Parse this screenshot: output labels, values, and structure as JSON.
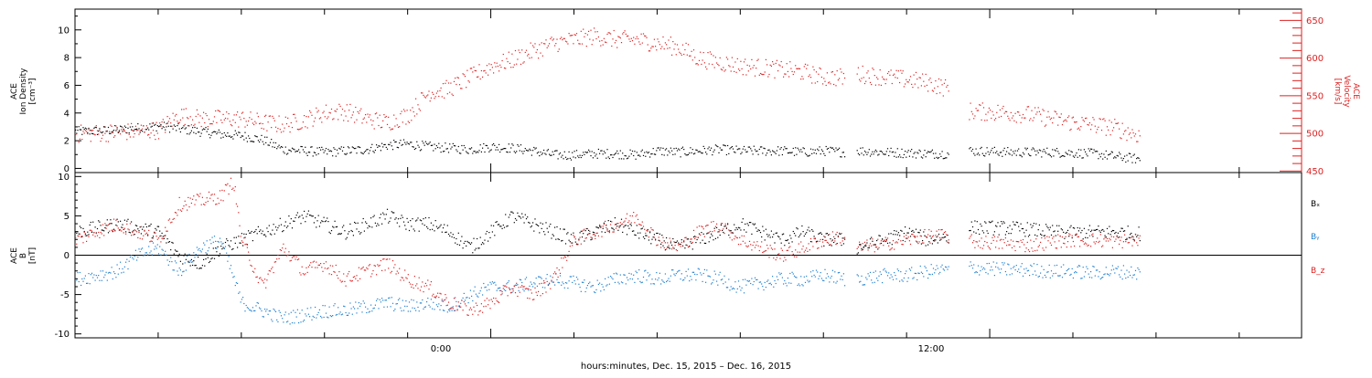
{
  "chart_data": [
    {
      "type": "scatter",
      "panel": "top",
      "x_unit": "hours relative to 2015-12-16 00:00",
      "xlim": [
        -10.0,
        19.5
      ],
      "left_axis": {
        "label_lines": [
          "ACE",
          "Ion Density",
          "[cm⁻³]"
        ],
        "ylim": [
          -0.3,
          11.5
        ],
        "ticks": [
          0,
          2,
          4,
          6,
          8,
          10
        ],
        "color": "#000000"
      },
      "right_axis": {
        "label_lines": [
          "ACE",
          "Velocity",
          "[km/s]"
        ],
        "ylim": [
          448,
          665
        ],
        "ticks": [
          450,
          500,
          550,
          600,
          650
        ],
        "color": "#dd2222"
      },
      "series": [
        {
          "axis": "left",
          "color": "#000000",
          "segments": [
            {
              "x": [
                -10,
                -9,
                -8,
                -7,
                -6.5,
                -6,
                -5.5,
                -5,
                -4.5,
                -4,
                -3.5,
                -3,
                -2.5,
                -2,
                -1.5,
                -1,
                -0.5,
                0,
                0.5,
                1,
                1.5,
                2,
                2.5,
                3,
                3.5,
                4,
                4.5,
                5,
                5.5,
                6,
                6.5,
                7,
                7.5,
                8,
                8.5
              ],
              "y": [
                2.7,
                2.8,
                3.1,
                2.7,
                2.5,
                2.4,
                2.1,
                1.4,
                1.3,
                1.2,
                1.3,
                1.4,
                1.7,
                1.8,
                1.6,
                1.5,
                1.4,
                1.6,
                1.5,
                1.3,
                1.0,
                1.0,
                1.1,
                1.1,
                1.0,
                1.3,
                1.2,
                1.3,
                1.4,
                1.3,
                1.3,
                1.3,
                1.2,
                1.3,
                1.2
              ]
            },
            {
              "x": [
                8.8,
                9.5,
                10.5,
                11.0
              ],
              "y": [
                1.3,
                1.2,
                1.1,
                1.1
              ]
            },
            {
              "x": [
                11.5,
                12.5,
                13.5,
                14.5,
                15.0,
                15.6
              ],
              "y": [
                1.3,
                1.2,
                1.2,
                1.1,
                0.9,
                0.7
              ]
            }
          ]
        },
        {
          "axis": "right",
          "color": "#dd2222",
          "segments": [
            {
              "x": [
                -10,
                -9,
                -8,
                -7.5,
                -7,
                -6,
                -5.5,
                -5,
                -4.5,
                -4,
                -3.5,
                -3,
                -2.5,
                -2,
                -1.5,
                -1,
                -0.5,
                0,
                0.5,
                1,
                1.5,
                2,
                2.5,
                3,
                3.5,
                4,
                4.5,
                5,
                5.5,
                6,
                6.5,
                7,
                7.5,
                8,
                8.5
              ],
              "y": [
                500,
                502,
                505,
                525,
                520,
                520,
                515,
                512,
                518,
                528,
                530,
                520,
                515,
                525,
                555,
                560,
                575,
                590,
                598,
                610,
                620,
                625,
                630,
                625,
                625,
                620,
                615,
                600,
                595,
                590,
                588,
                585,
                582,
                575,
                575
              ]
            },
            {
              "x": [
                8.8,
                9.5,
                10.0,
                10.5,
                11.0
              ],
              "y": [
                580,
                575,
                572,
                568,
                560
              ]
            },
            {
              "x": [
                11.5,
                12.5,
                13.0,
                13.5,
                14.0,
                14.5,
                15.0,
                15.6
              ],
              "y": [
                530,
                528,
                525,
                520,
                515,
                512,
                508,
                498
              ]
            }
          ]
        }
      ]
    },
    {
      "type": "scatter",
      "panel": "bottom",
      "x_unit": "hours relative to 2015-12-16 00:00",
      "xlim": [
        -10.0,
        19.5
      ],
      "xlabel": "hours:minutes, Dec. 15, 2015 – Dec. 16, 2015",
      "x_tick_labels": [
        {
          "x": 0,
          "label": "0:00"
        },
        {
          "x": 12,
          "label": "12:00"
        }
      ],
      "left_axis": {
        "label_lines": [
          "ACE",
          "B",
          "[nT]"
        ],
        "ylim": [
          -10.5,
          10.5
        ],
        "ticks": [
          -10,
          -5,
          0,
          5,
          10
        ],
        "color": "#000000"
      },
      "zero_line": true,
      "legend": [
        "Bₓ",
        "Bᵧ",
        "B_z"
      ],
      "legend_position": "right",
      "series": [
        {
          "name": "Bₓ",
          "color": "#000000",
          "segments": [
            {
              "x": [
                -10,
                -9,
                -8,
                -7.5,
                -7,
                -6.5,
                -6,
                -5.5,
                -5,
                -4.5,
                -4,
                -3.5,
                -3,
                -2.5,
                -2,
                -1.5,
                -1,
                -0.5,
                0,
                0.5,
                1,
                1.5,
                2,
                2.5,
                3,
                3.5,
                4,
                4.5,
                5,
                5.5,
                6,
                6.5,
                7,
                7.5,
                8,
                8.5
              ],
              "y": [
                3,
                4,
                3,
                0,
                -1,
                1,
                2,
                3,
                4,
                5,
                4,
                3,
                4,
                5,
                4,
                4,
                3,
                1,
                3,
                5,
                4,
                3,
                2,
                3,
                4,
                3,
                2,
                1,
                2,
                3,
                4,
                3,
                2,
                3,
                2,
                2
              ]
            },
            {
              "x": [
                8.8,
                9.5,
                10.0,
                10.5,
                11.0
              ],
              "y": [
                1,
                2,
                3,
                2,
                2.5
              ]
            },
            {
              "x": [
                11.5,
                12.5,
                13.0,
                13.5,
                14.0,
                14.5,
                15.0,
                15.6
              ],
              "y": [
                3.6,
                3.5,
                3.3,
                3.0,
                2.9,
                3.0,
                3.0,
                2.8
              ]
            }
          ]
        },
        {
          "name": "Bᵧ",
          "color": "#1e7fd0",
          "segments": [
            {
              "x": [
                -10,
                -9,
                -8.5,
                -8,
                -7.5,
                -7,
                -6.5,
                -6,
                -5.5,
                -5,
                -4.5,
                -4,
                -3.5,
                -3,
                -2.5,
                -2,
                -1.5,
                -1,
                -0.5,
                0,
                0.5,
                1,
                1.5,
                2,
                2.5,
                3,
                3.5,
                4,
                4.5,
                5,
                5.5,
                6,
                6.5,
                7,
                7.5,
                8,
                8.5
              ],
              "y": [
                -3,
                -2,
                0,
                1,
                -2,
                1,
                2,
                -6,
                -7,
                -8,
                -7.5,
                -7,
                -7,
                -6.5,
                -6,
                -6.5,
                -6,
                -6.5,
                -5,
                -4,
                -4,
                -3.5,
                -3,
                -3.5,
                -4,
                -3,
                -2.5,
                -3,
                -2.5,
                -2.5,
                -3,
                -4,
                -3.5,
                -3,
                -3,
                -2.5,
                -3
              ]
            },
            {
              "x": [
                8.8,
                9.5,
                10.0,
                10.5,
                11.0
              ],
              "y": [
                -3,
                -2.5,
                -2.5,
                -2,
                -1.8
              ]
            },
            {
              "x": [
                11.5,
                12.5,
                13.0,
                13.5,
                14.0,
                14.5,
                15.0,
                15.6
              ],
              "y": [
                -1.5,
                -1.8,
                -1.8,
                -2,
                -2,
                -2.2,
                -2.0,
                -2.2
              ]
            }
          ]
        },
        {
          "name": "B_z",
          "color": "#dd2222",
          "segments": [
            {
              "x": [
                -10,
                -9,
                -8,
                -7.5,
                -7,
                -6.5,
                -6.2,
                -6,
                -5.5,
                -5,
                -4.5,
                -4,
                -3.5,
                -3,
                -2.5,
                -2,
                -1.5,
                -1,
                -0.5,
                0,
                0.5,
                1,
                1.5,
                2,
                2.5,
                3,
                3.5,
                4,
                4.5,
                5,
                5.5,
                6,
                6.5,
                7,
                7.5,
                8,
                8.5
              ],
              "y": [
                2,
                4,
                2,
                6.5,
                7,
                7.5,
                9.5,
                2,
                -4,
                1,
                -2,
                -1,
                -3,
                -2,
                -1,
                -3,
                -4,
                -6,
                -7,
                -6,
                -4,
                -5,
                -3,
                2,
                3,
                4,
                5,
                2,
                1,
                3,
                4,
                2,
                1,
                0,
                1,
                2,
                2.5
              ]
            },
            {
              "x": [
                8.8,
                9.5,
                10.0,
                10.5,
                11.0
              ],
              "y": [
                1,
                1.5,
                2,
                2.5,
                2.5
              ]
            },
            {
              "x": [
                11.5,
                12.5,
                13.0,
                13.5,
                14.0,
                14.5,
                15.0,
                15.6
              ],
              "y": [
                1.8,
                1.5,
                1.3,
                1.8,
                2.0,
                2.0,
                1.8,
                2.0
              ]
            }
          ]
        }
      ]
    }
  ]
}
